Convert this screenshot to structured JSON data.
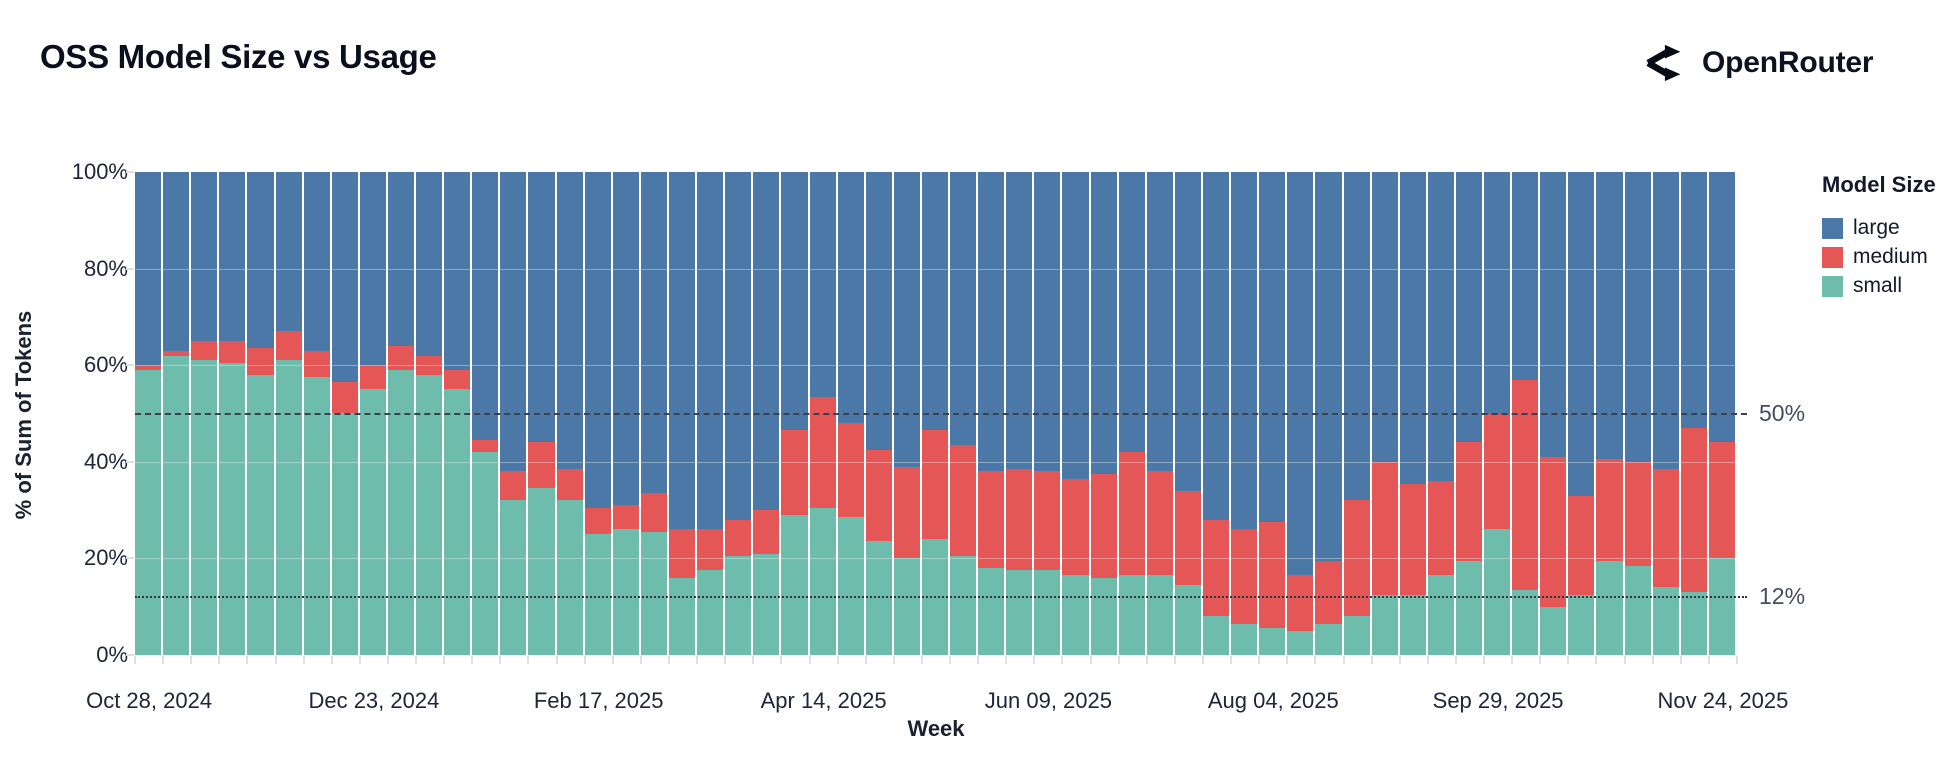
{
  "header": {
    "title": "OSS Model Size vs Usage",
    "brand": "OpenRouter"
  },
  "legend": {
    "title": "Model Size"
  },
  "colors": {
    "large": "#4c78a8",
    "medium": "#e45756",
    "small": "#6ebcab",
    "reference_line": "#3a4150",
    "axis_text": "#20253a"
  },
  "chart_data": {
    "type": "bar",
    "stacked": true,
    "normalized": true,
    "title": "OSS Model Size vs Usage",
    "xlabel": "Week",
    "ylabel": "% of Sum of Tokens",
    "ylim": [
      0,
      100
    ],
    "grid": "faint white horizontal lines over bars",
    "legend_position": "top-right",
    "n_bars": 57,
    "bar_frequency": "weekly",
    "x_range_visible": [
      "Oct 28, 2024",
      "Nov 24, 2025"
    ],
    "x_tick_labels": [
      "Oct 28, 2024",
      "Dec 23, 2024",
      "Feb 17, 2025",
      "Apr 14, 2025",
      "Jun 09, 2025",
      "Aug 04, 2025",
      "Sep 29, 2025",
      "Nov 24, 2025"
    ],
    "x_tick_bar_indices": [
      0,
      8,
      16,
      24,
      32,
      40,
      48,
      56
    ],
    "y_ticks": [
      {
        "value": 0,
        "label": "0%"
      },
      {
        "value": 20,
        "label": "20%"
      },
      {
        "value": 40,
        "label": "40%"
      },
      {
        "value": 60,
        "label": "60%"
      },
      {
        "value": 80,
        "label": "80%"
      },
      {
        "value": 100,
        "label": "100%"
      }
    ],
    "series": [
      {
        "name": "small",
        "color": "#6ebcab",
        "values": [
          59,
          62,
          61,
          60.5,
          58,
          61,
          57.5,
          50,
          55,
          59,
          58,
          55,
          42,
          32,
          34.5,
          32,
          25,
          26,
          25.5,
          16,
          17.5,
          20.5,
          21,
          29,
          30.5,
          28.5,
          23.5,
          20,
          24,
          20.5,
          18,
          17.5,
          17.5,
          16.5,
          16,
          16.5,
          16.5,
          14.5,
          8,
          6.5,
          5.5,
          5,
          6.5,
          8,
          12.5,
          12.5,
          16.5,
          19.5,
          26,
          13.5,
          10,
          12.5,
          19.5,
          18.5,
          14,
          13,
          20
        ]
      },
      {
        "name": "medium",
        "color": "#e45756",
        "values": [
          1,
          1,
          4,
          4.5,
          5.5,
          6,
          5.5,
          6.5,
          5,
          5,
          4,
          4,
          2.5,
          6,
          9.5,
          6.5,
          5.5,
          5,
          8,
          10,
          8.5,
          7.5,
          9,
          17.5,
          23,
          19.5,
          19,
          19,
          22.5,
          23,
          20,
          21,
          20.5,
          20,
          21.5,
          25.5,
          21.5,
          19.5,
          20,
          19.5,
          22,
          11.5,
          13,
          24,
          27.5,
          23,
          19.5,
          24.5,
          24,
          43.5,
          31,
          20.5,
          21,
          21.5,
          24.5,
          34,
          24
        ]
      },
      {
        "name": "large",
        "color": "#4c78a8",
        "values": [
          40,
          37,
          35,
          35,
          36.5,
          33,
          37,
          43.5,
          40,
          36,
          38,
          41,
          55.5,
          62,
          56,
          61.5,
          69.5,
          69,
          66.5,
          74,
          74,
          72,
          70,
          53.5,
          46.5,
          52,
          57.5,
          61,
          53.5,
          56.5,
          62,
          61.5,
          62,
          63.5,
          62.5,
          58,
          62,
          66,
          72,
          74,
          72.5,
          83.5,
          80.5,
          68,
          60,
          64.5,
          64,
          56,
          50,
          43,
          59,
          67,
          59.5,
          60,
          61.5,
          53,
          56
        ]
      }
    ],
    "reference_lines": [
      {
        "value": 50,
        "style": "dashed",
        "label": "50%"
      },
      {
        "value": 12,
        "style": "dotted",
        "label": "12%"
      }
    ]
  }
}
